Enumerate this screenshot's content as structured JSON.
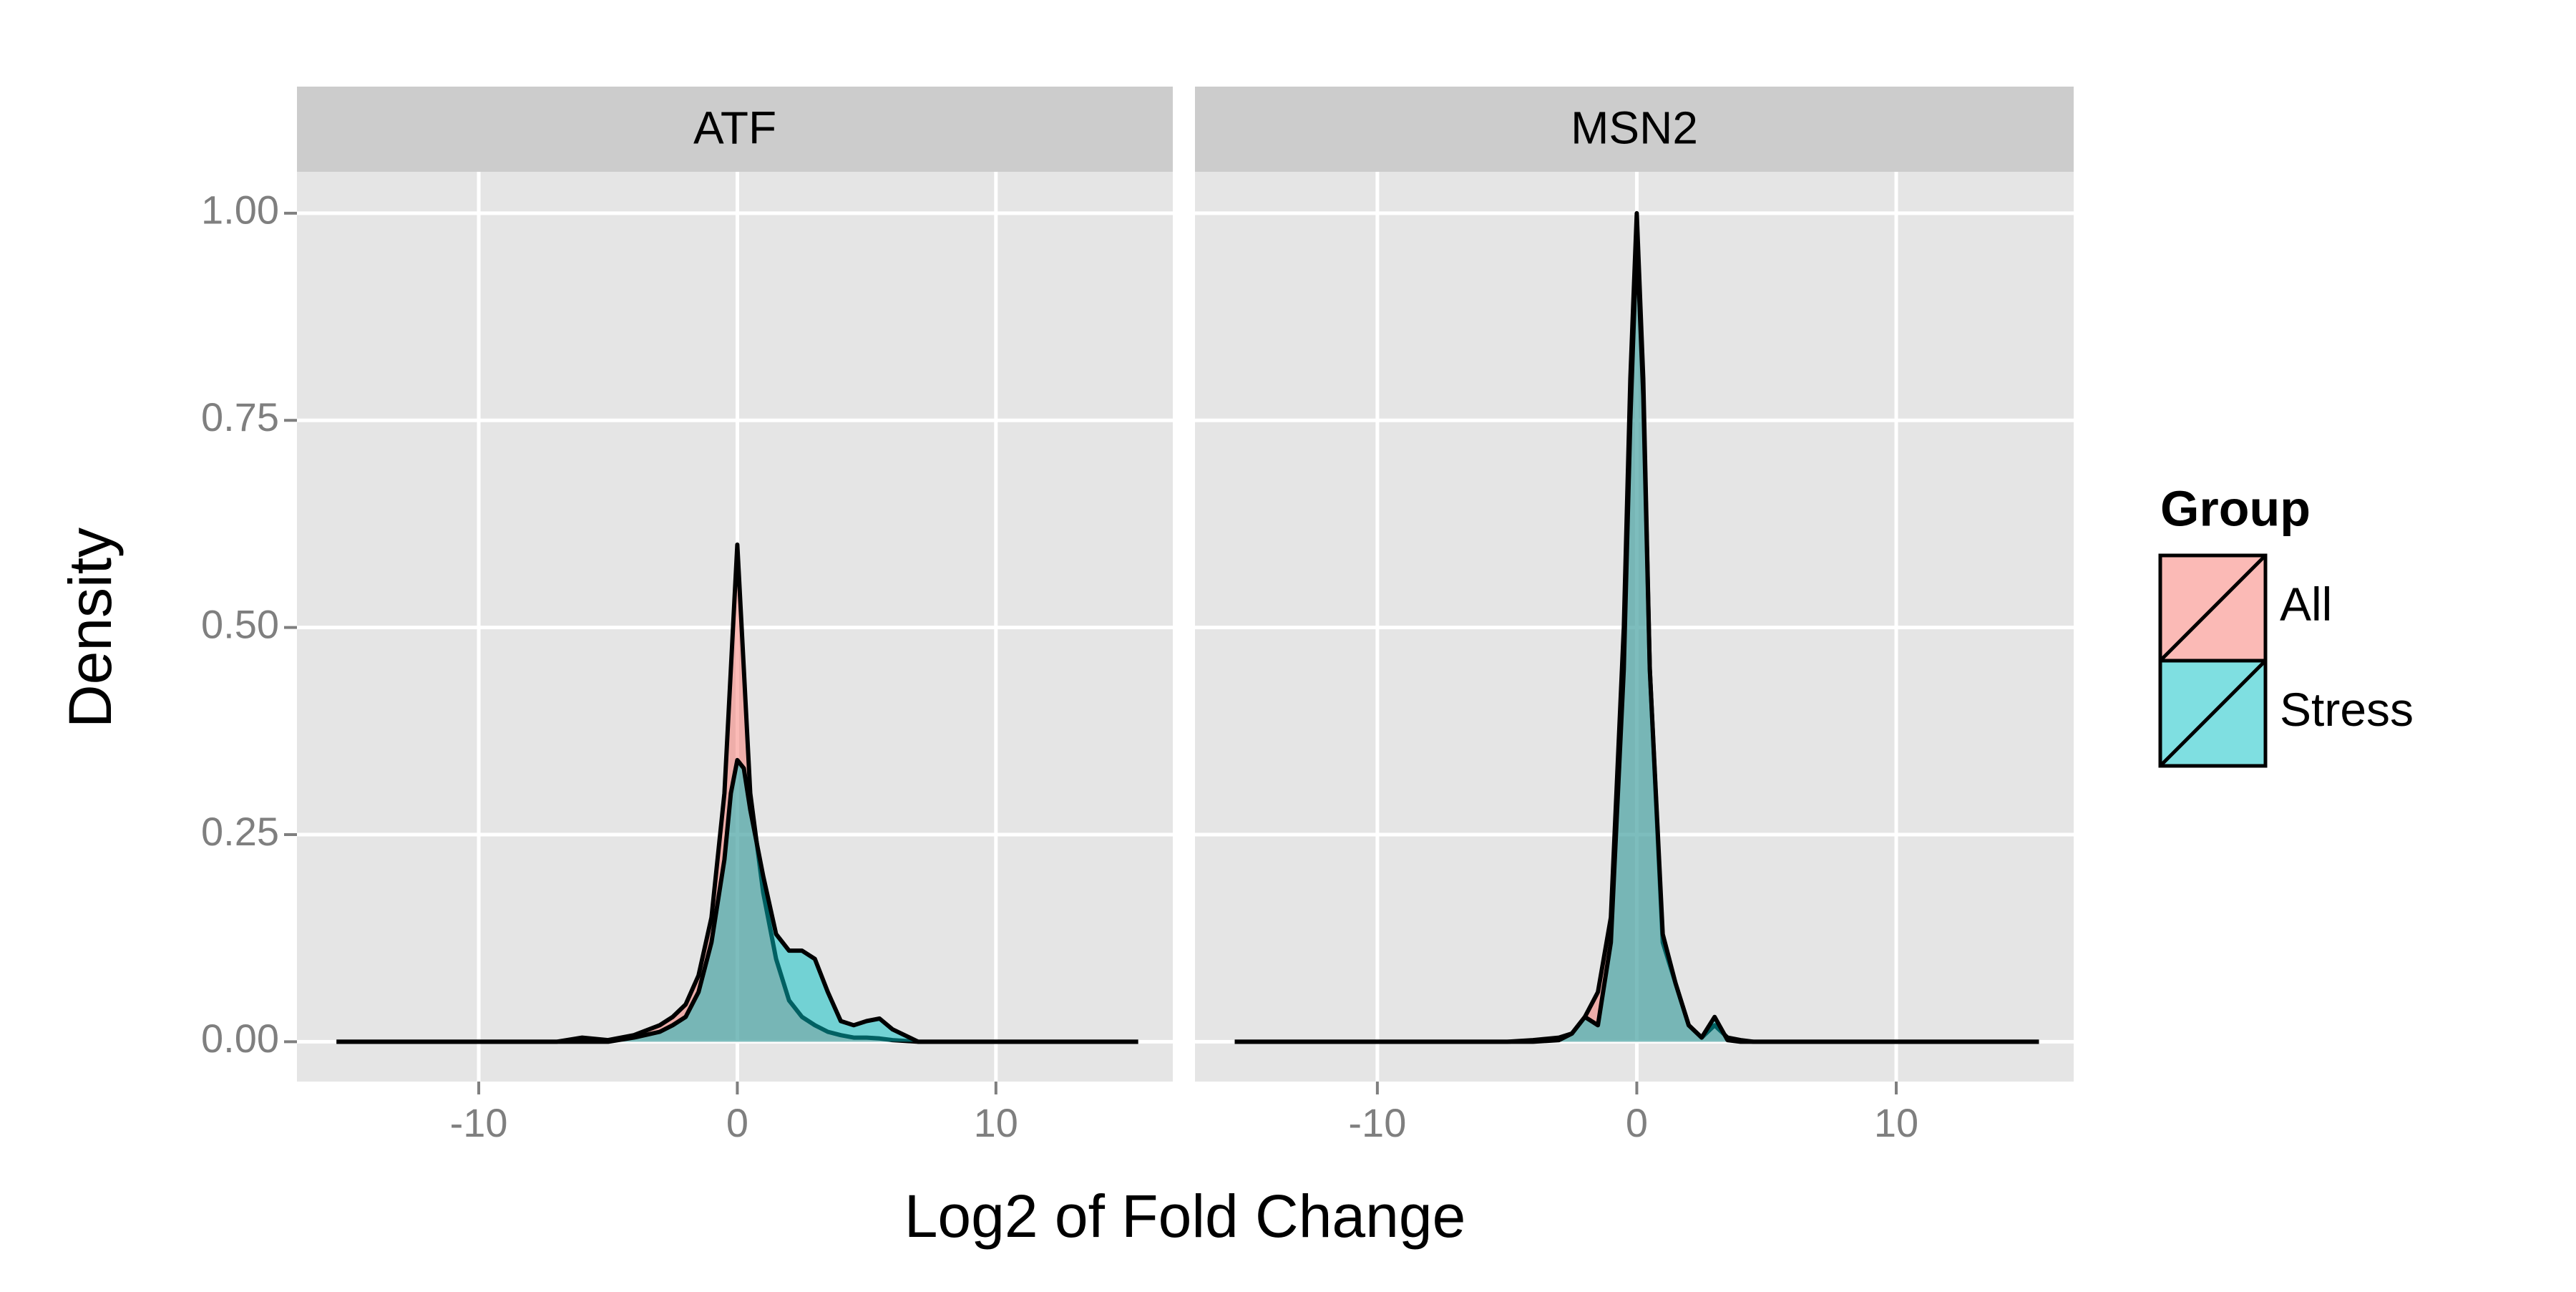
{
  "chart_data": {
    "type": "density",
    "x_label": "Log2 of Fold Change",
    "y_label": "Density",
    "legend": {
      "title": "Group",
      "position": "right"
    },
    "grid": true,
    "xlim": [
      -17.03,
      16.84
    ],
    "xticks": [
      -10,
      0,
      10
    ],
    "ylim": [
      -0.048,
      1.05
    ],
    "yticks": [
      {
        "value": 0,
        "label": "0.00"
      },
      {
        "value": 0.25,
        "label": "0.25"
      },
      {
        "value": 0.5,
        "label": "0.50"
      },
      {
        "value": 0.75,
        "label": "0.75"
      },
      {
        "value": 1,
        "label": "1.00"
      }
    ],
    "series": [
      {
        "name": "All",
        "color": "#F8766D"
      },
      {
        "name": "Stress",
        "color": "#00BFC4"
      }
    ],
    "x": [
      -15.5,
      -10,
      -7,
      -6,
      -5,
      -4,
      -3,
      -2.5,
      -2,
      -1.5,
      -1,
      -0.5,
      -0.25,
      0,
      0.25,
      0.5,
      1,
      1.5,
      2,
      2.5,
      3,
      3.5,
      4,
      4.5,
      5,
      5.5,
      6,
      7,
      10,
      15.5
    ],
    "panels": [
      {
        "title": "ATF",
        "values": [
          [
            0,
            0,
            0,
            0.005,
            0.002,
            0.008,
            0.02,
            0.03,
            0.045,
            0.08,
            0.15,
            0.3,
            0.45,
            0.6,
            0.45,
            0.3,
            0.18,
            0.1,
            0.05,
            0.03,
            0.02,
            0.012,
            0.008,
            0.005,
            0.005,
            0.004,
            0.002,
            0,
            0,
            0
          ],
          [
            0,
            0,
            0,
            0,
            0,
            0.005,
            0.012,
            0.02,
            0.03,
            0.06,
            0.12,
            0.22,
            0.3,
            0.34,
            0.33,
            0.28,
            0.2,
            0.13,
            0.11,
            0.11,
            0.1,
            0.06,
            0.025,
            0.02,
            0.025,
            0.028,
            0.015,
            0,
            0,
            0
          ]
        ]
      },
      {
        "title": "MSN2",
        "values": [
          [
            0,
            0,
            0,
            0,
            0,
            0.002,
            0.005,
            0.01,
            0.03,
            0.06,
            0.15,
            0.5,
            0.8,
            1.0,
            0.8,
            0.45,
            0.12,
            0.07,
            0.02,
            0.005,
            0.02,
            0.005,
            0.002,
            0,
            0,
            0,
            0,
            0,
            0,
            0
          ],
          [
            0,
            0,
            0,
            0,
            0,
            0,
            0.002,
            0.01,
            0.03,
            0.02,
            0.12,
            0.45,
            0.75,
            0.97,
            0.78,
            0.45,
            0.13,
            0.07,
            0.02,
            0.005,
            0.03,
            0.002,
            0,
            0,
            0,
            0,
            0,
            0,
            0,
            0
          ]
        ]
      }
    ]
  }
}
